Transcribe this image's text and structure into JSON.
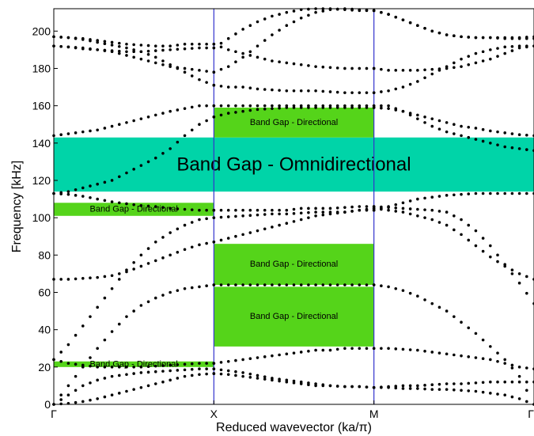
{
  "chart_data": {
    "type": "scatter",
    "title": "",
    "xlabel": "Reduced wavevector (ka/π)",
    "ylabel": "Frequency [kHz]",
    "ylim": [
      0,
      212
    ],
    "yticks": [
      0,
      20,
      40,
      60,
      80,
      100,
      120,
      140,
      160,
      180,
      200
    ],
    "xticks": [
      {
        "pos": 0,
        "label": "Γ"
      },
      {
        "pos": 1,
        "label": "X"
      },
      {
        "pos": 2,
        "label": "M"
      },
      {
        "pos": 3,
        "label": "Γ"
      }
    ],
    "symmetry_lines": [
      1,
      2
    ],
    "symmetry_line_color": "#3333cc",
    "gap_color": "#55d41a",
    "omni_gap_color": "#00d4a8",
    "band_gaps": [
      {
        "label": "Band Gap - Omnidirectional",
        "x0": 0,
        "x1": 3,
        "y0": 114,
        "y1": 143,
        "omni": true
      },
      {
        "label": "Band Gap - Directional",
        "x0": 1,
        "x1": 2,
        "y0": 143,
        "y1": 159,
        "omni": false
      },
      {
        "label": "Band Gap - Directional",
        "x0": 0,
        "x1": 1,
        "y0": 101,
        "y1": 108,
        "omni": false
      },
      {
        "label": "Band Gap - Directional",
        "x0": 1,
        "x1": 2,
        "y0": 64,
        "y1": 86,
        "omni": false
      },
      {
        "label": "Band Gap - Directional",
        "x0": 1,
        "x1": 2,
        "y0": 31,
        "y1": 63,
        "omni": false
      },
      {
        "label": "Band Gap - Directional",
        "x0": 0,
        "x1": 1,
        "y0": 20,
        "y1": 23,
        "omni": false
      }
    ],
    "bands": {
      "GX": [
        [
          0,
          0.5,
          1.5,
          3,
          5,
          7,
          9,
          11,
          13,
          15,
          16,
          16.5
        ],
        [
          0,
          5,
          10,
          13,
          15,
          16,
          17,
          17.5,
          18,
          18.5,
          19,
          19
        ],
        [
          24,
          22,
          21,
          20,
          20,
          20,
          20,
          20.5,
          21,
          21.5,
          22,
          22
        ],
        [
          0,
          10,
          20,
          30,
          39,
          47,
          53,
          57,
          60,
          62,
          63,
          64
        ],
        [
          67,
          67,
          67.5,
          68,
          69,
          71,
          74,
          77,
          80,
          83,
          85.5,
          87
        ],
        [
          24,
          32,
          42,
          52,
          62,
          72,
          80,
          87,
          92,
          96,
          99,
          100
        ],
        [
          113,
          112.5,
          111.5,
          110,
          108.5,
          107.5,
          106.5,
          106,
          105,
          104.5,
          104,
          104
        ],
        [
          113,
          114,
          116,
          118,
          120,
          124,
          128,
          132,
          137,
          144,
          150,
          154
        ],
        [
          144,
          145,
          146,
          147,
          149,
          151,
          153,
          155,
          157,
          158.5,
          160,
          160
        ],
        [
          192,
          191.5,
          191,
          190,
          189,
          187,
          185,
          183,
          181,
          180,
          179,
          178
        ],
        [
          192,
          191.5,
          190.5,
          190,
          189.5,
          189,
          189,
          189.5,
          190,
          190.5,
          191,
          191
        ],
        [
          197,
          196.5,
          195.5,
          194,
          192.5,
          191,
          189,
          186,
          182,
          178,
          174,
          171
        ],
        [
          197,
          196.5,
          196,
          195,
          194,
          193,
          192.5,
          192,
          192,
          193,
          193,
          193
        ]
      ],
      "XM": [
        [
          16.5,
          16,
          15,
          14,
          13,
          12,
          11,
          10,
          10,
          9.5,
          9.5,
          9
        ],
        [
          19,
          18,
          17,
          15.5,
          14,
          13,
          12,
          11,
          10,
          9.5,
          9.5,
          9
        ],
        [
          22,
          23,
          24,
          25,
          26,
          27,
          28,
          29,
          29,
          30,
          30,
          30
        ],
        [
          64,
          64,
          64,
          64,
          64,
          64,
          64,
          64,
          64,
          64,
          64,
          64
        ],
        [
          87,
          89,
          91,
          93,
          95,
          97,
          99,
          101,
          102,
          103,
          104,
          105
        ],
        [
          100,
          100.5,
          101,
          101.5,
          102,
          102,
          102.5,
          103,
          103,
          103,
          104,
          104
        ],
        [
          104,
          104,
          104,
          104,
          104,
          104,
          105,
          105,
          105,
          105.5,
          106,
          106
        ],
        [
          154,
          156,
          157,
          158,
          158.5,
          159,
          159,
          159,
          159,
          159,
          159,
          159
        ],
        [
          160,
          160,
          160,
          160,
          160,
          160,
          160,
          160,
          160,
          160,
          160,
          160
        ],
        [
          178,
          181,
          186,
          192,
          198,
          203,
          207,
          210,
          211.5,
          212,
          211.5,
          211
        ],
        [
          191,
          196,
          201,
          205,
          208,
          210,
          211.5,
          212,
          212,
          211.5,
          211,
          211
        ],
        [
          171,
          170,
          170,
          169,
          168.5,
          168,
          168,
          168,
          167.5,
          167,
          167,
          167
        ],
        [
          193,
          190,
          188,
          186,
          184,
          183,
          182,
          181,
          180.5,
          180,
          180,
          180
        ]
      ],
      "MG": [
        [
          9,
          9,
          8.5,
          8.5,
          8,
          8,
          7.5,
          7,
          6,
          5,
          3,
          0
        ],
        [
          9,
          9.5,
          10,
          10,
          10.5,
          11,
          11,
          11.5,
          12,
          12,
          12,
          12
        ],
        [
          30,
          30,
          29.5,
          29,
          28,
          27,
          26,
          25,
          24,
          22,
          20,
          19
        ],
        [
          64,
          63,
          61,
          58,
          54,
          50,
          44,
          38,
          31,
          24,
          15,
          0
        ],
        [
          105,
          104,
          103,
          101,
          99,
          96,
          91,
          85,
          79,
          74,
          70,
          67
        ],
        [
          104,
          106,
          108,
          110,
          111,
          112,
          112.5,
          113,
          113,
          113,
          113,
          113
        ],
        [
          106,
          105.5,
          105,
          104.5,
          104,
          103,
          99,
          93,
          85,
          75,
          65,
          54
        ],
        [
          159,
          158.5,
          157,
          155,
          153,
          151,
          149,
          148,
          146.5,
          145.5,
          144.5,
          144
        ],
        [
          160,
          160,
          157,
          153,
          149,
          146,
          144,
          142,
          140,
          138,
          137,
          136
        ],
        [
          211,
          209,
          206,
          203,
          200,
          198,
          197,
          196.5,
          196.5,
          196.5,
          196.5,
          197
        ],
        [
          211,
          209,
          206,
          203,
          200,
          198,
          197,
          196.5,
          196.5,
          196,
          196,
          196
        ],
        [
          167,
          168,
          170,
          173,
          177,
          181,
          185,
          188,
          190,
          191.5,
          192,
          192
        ],
        [
          180,
          179,
          179,
          179,
          179.5,
          180,
          181,
          183,
          185,
          188,
          191,
          192
        ]
      ]
    }
  }
}
